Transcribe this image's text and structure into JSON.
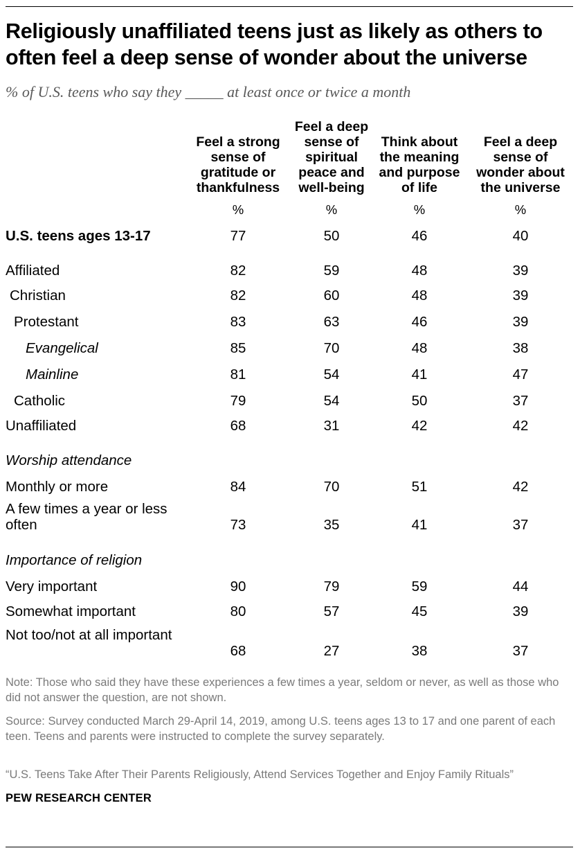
{
  "title": "Religiously unaffiliated teens just as likely as others to often feel a deep sense of wonder about the universe",
  "subtitle": "% of U.S. teens who say they _____ at least once or twice a month",
  "chart_data": {
    "type": "table",
    "columns": [
      "Feel a strong sense of gratitude or thankfulness",
      "Feel a deep sense of spiritual peace and well-being",
      "Think about the meaning and purpose of life",
      "Feel a deep sense of wonder about the universe"
    ],
    "unit_label": "%",
    "sections": [
      {
        "heading": "",
        "rows": [
          {
            "label": "U.S. teens ages 13-17",
            "style": "bold",
            "indent": 0,
            "values": [
              77,
              50,
              46,
              40
            ]
          }
        ]
      },
      {
        "heading": "",
        "rows": [
          {
            "label": "Affiliated",
            "style": "normal",
            "indent": 0,
            "values": [
              82,
              59,
              48,
              39
            ]
          },
          {
            "label": "Christian",
            "style": "normal",
            "indent": 1,
            "values": [
              82,
              60,
              48,
              39
            ]
          },
          {
            "label": "Protestant",
            "style": "normal",
            "indent": 2,
            "values": [
              83,
              63,
              46,
              39
            ]
          },
          {
            "label": "Evangelical",
            "style": "italic",
            "indent": 3,
            "values": [
              85,
              70,
              48,
              38
            ]
          },
          {
            "label": "Mainline",
            "style": "italic",
            "indent": 3,
            "values": [
              81,
              54,
              41,
              47
            ]
          },
          {
            "label": "Catholic",
            "style": "normal",
            "indent": 2,
            "values": [
              79,
              54,
              50,
              37
            ]
          },
          {
            "label": "Unaffiliated",
            "style": "normal",
            "indent": 0,
            "values": [
              68,
              31,
              42,
              42
            ]
          }
        ]
      },
      {
        "heading": "Worship attendance",
        "rows": [
          {
            "label": "Monthly or more",
            "style": "normal",
            "indent": 0,
            "values": [
              84,
              70,
              51,
              42
            ]
          },
          {
            "label": "A few times a year or less often",
            "style": "normal",
            "indent": 0,
            "values": [
              73,
              35,
              41,
              37
            ]
          }
        ]
      },
      {
        "heading": "Importance of religion",
        "rows": [
          {
            "label": "Very important",
            "style": "normal",
            "indent": 0,
            "values": [
              90,
              79,
              59,
              44
            ]
          },
          {
            "label": "Somewhat important",
            "style": "normal",
            "indent": 0,
            "values": [
              80,
              57,
              45,
              39
            ]
          },
          {
            "label": "Not too/not at all important",
            "style": "normal",
            "indent": 0,
            "values": [
              68,
              27,
              38,
              37
            ]
          }
        ]
      }
    ]
  },
  "note": "Note: Those who said they have these experiences a few times a year, seldom or never, as well as those who did not answer the question, are not shown.",
  "source": "Source: Survey conducted March 29-April 14, 2019, among U.S. teens ages 13 to 17 and one parent of each teen. Teens and parents were instructed to complete the survey separately.",
  "report": "“U.S. Teens Take After Their Parents Religiously, Attend Services Together and Enjoy Family Rituals”",
  "brand": "PEW RESEARCH CENTER"
}
